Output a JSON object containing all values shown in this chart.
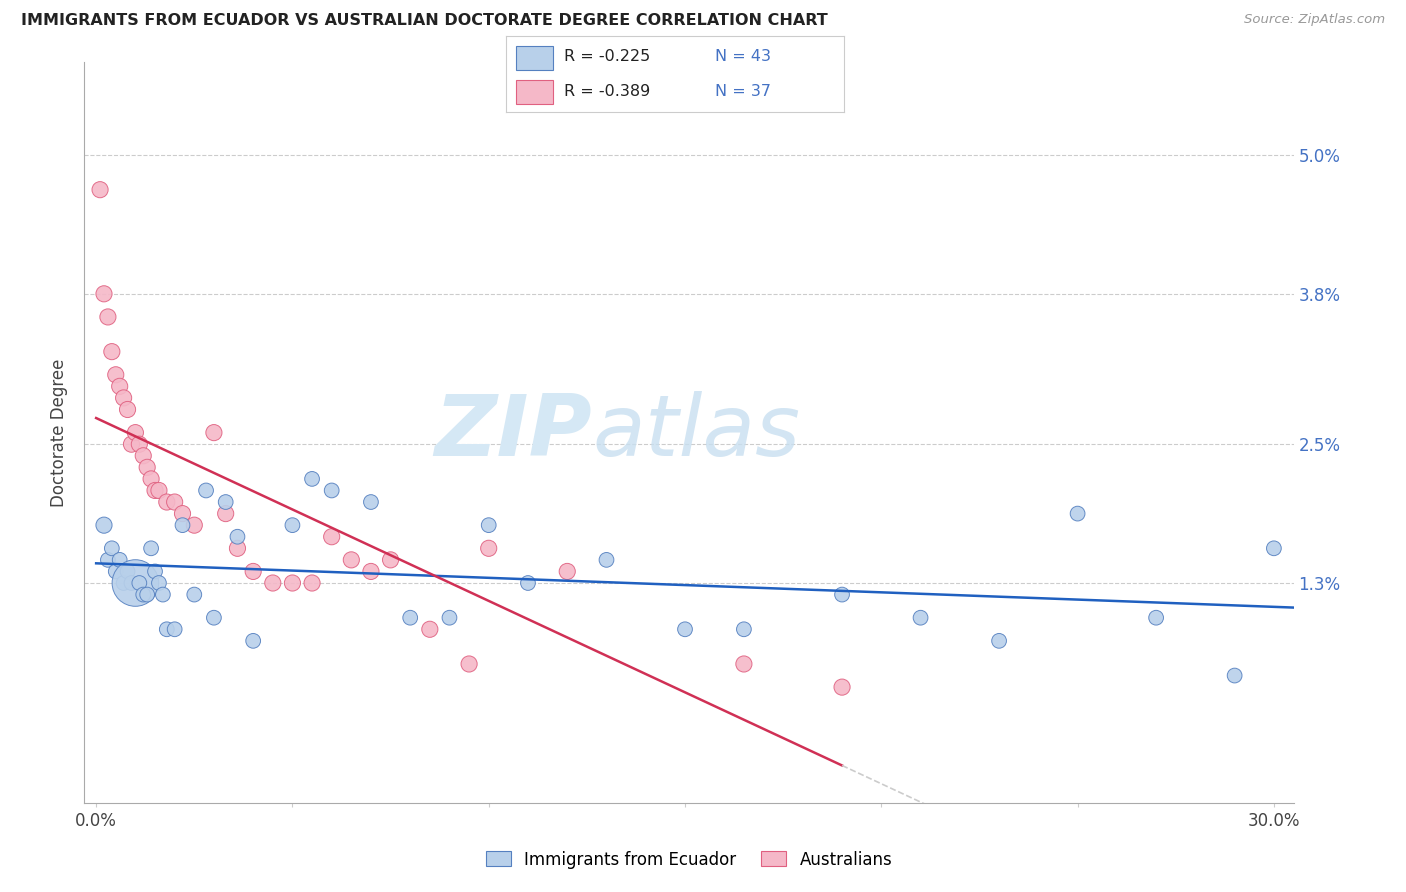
{
  "title": "IMMIGRANTS FROM ECUADOR VS AUSTRALIAN DOCTORATE DEGREE CORRELATION CHART",
  "source": "Source: ZipAtlas.com",
  "ylabel": "Doctorate Degree",
  "x_ticks": [
    0.0,
    0.05,
    0.1,
    0.15,
    0.2,
    0.25,
    0.3
  ],
  "x_tick_labels": [
    "0.0%",
    "",
    "",
    "",
    "",
    "",
    "30.0%"
  ],
  "y_ticks": [
    0.013,
    0.025,
    0.038,
    0.05
  ],
  "y_tick_labels": [
    "1.3%",
    "2.5%",
    "3.8%",
    "5.0%"
  ],
  "xlim": [
    -0.003,
    0.305
  ],
  "ylim": [
    -0.006,
    0.058
  ],
  "blue_R": "-0.225",
  "blue_N": "43",
  "pink_R": "-0.389",
  "pink_N": "37",
  "blue_fill": "#b8d0ea",
  "pink_fill": "#f5b8c8",
  "blue_edge": "#5580c0",
  "pink_edge": "#e06080",
  "blue_line": "#2060c0",
  "pink_line": "#d03055",
  "dash_line": "#cccccc",
  "watermark_color": "#d5e8f5",
  "legend_label_blue": "Immigrants from Ecuador",
  "legend_label_pink": "Australians",
  "blue_scatter_x": [
    0.002,
    0.003,
    0.004,
    0.005,
    0.006,
    0.007,
    0.008,
    0.009,
    0.01,
    0.011,
    0.012,
    0.013,
    0.014,
    0.015,
    0.016,
    0.017,
    0.018,
    0.02,
    0.022,
    0.025,
    0.028,
    0.03,
    0.033,
    0.036,
    0.04,
    0.05,
    0.055,
    0.06,
    0.07,
    0.08,
    0.09,
    0.1,
    0.11,
    0.13,
    0.15,
    0.165,
    0.19,
    0.21,
    0.23,
    0.25,
    0.27,
    0.29,
    0.3
  ],
  "blue_scatter_y": [
    0.018,
    0.015,
    0.016,
    0.014,
    0.015,
    0.013,
    0.014,
    0.013,
    0.013,
    0.013,
    0.012,
    0.012,
    0.016,
    0.014,
    0.013,
    0.012,
    0.009,
    0.009,
    0.018,
    0.012,
    0.021,
    0.01,
    0.02,
    0.017,
    0.008,
    0.018,
    0.022,
    0.021,
    0.02,
    0.01,
    0.01,
    0.018,
    0.013,
    0.015,
    0.009,
    0.009,
    0.012,
    0.01,
    0.008,
    0.019,
    0.01,
    0.005,
    0.016
  ],
  "blue_scatter_sizes": [
    30,
    25,
    25,
    25,
    25,
    25,
    25,
    25,
    250,
    25,
    25,
    25,
    25,
    25,
    25,
    25,
    25,
    25,
    25,
    25,
    25,
    25,
    25,
    25,
    25,
    25,
    25,
    25,
    25,
    25,
    25,
    25,
    25,
    25,
    25,
    25,
    25,
    25,
    25,
    25,
    25,
    25,
    25
  ],
  "pink_scatter_x": [
    0.001,
    0.002,
    0.003,
    0.004,
    0.005,
    0.006,
    0.007,
    0.008,
    0.009,
    0.01,
    0.011,
    0.012,
    0.013,
    0.014,
    0.015,
    0.016,
    0.018,
    0.02,
    0.022,
    0.025,
    0.03,
    0.033,
    0.036,
    0.04,
    0.045,
    0.05,
    0.055,
    0.06,
    0.065,
    0.07,
    0.075,
    0.085,
    0.095,
    0.1,
    0.12,
    0.165,
    0.19
  ],
  "pink_scatter_y": [
    0.047,
    0.038,
    0.036,
    0.033,
    0.031,
    0.03,
    0.029,
    0.028,
    0.025,
    0.026,
    0.025,
    0.024,
    0.023,
    0.022,
    0.021,
    0.021,
    0.02,
    0.02,
    0.019,
    0.018,
    0.026,
    0.019,
    0.016,
    0.014,
    0.013,
    0.013,
    0.013,
    0.017,
    0.015,
    0.014,
    0.015,
    0.009,
    0.006,
    0.016,
    0.014,
    0.006,
    0.004
  ],
  "pink_scatter_sizes": [
    30,
    30,
    30,
    30,
    30,
    30,
    30,
    30,
    30,
    30,
    30,
    30,
    30,
    30,
    30,
    30,
    30,
    30,
    30,
    30,
    30,
    30,
    30,
    30,
    30,
    30,
    30,
    30,
    30,
    30,
    30,
    30,
    30,
    30,
    30,
    30,
    30
  ]
}
